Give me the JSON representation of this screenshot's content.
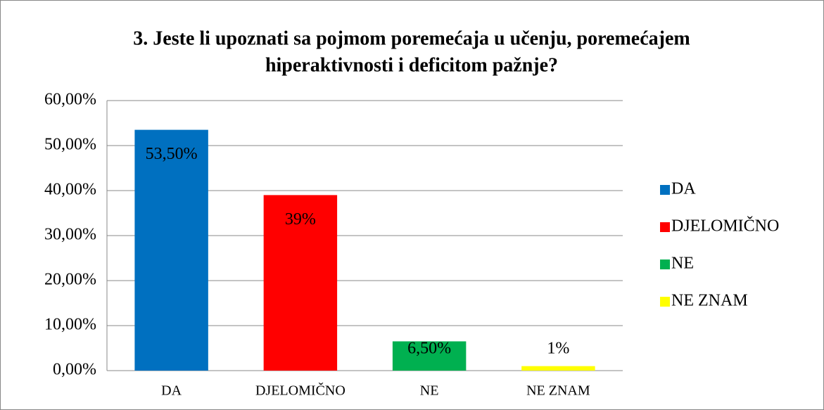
{
  "chart_data": {
    "type": "bar",
    "title": [
      "3. Jeste li upoznati sa pojmom poremećaja u učenju,  poremećajem",
      "hiperaktivnosti i deficitom pažnje?"
    ],
    "categories": [
      "DA",
      "DJELOMIČNO",
      "NE",
      "NE ZNAM"
    ],
    "values": [
      53.5,
      39,
      6.5,
      1
    ],
    "value_labels": [
      "53,50%",
      "39%",
      "6,50%",
      "1%"
    ],
    "colors": [
      "#0070c0",
      "#ff0000",
      "#00b050",
      "#ffff00"
    ],
    "ylim": [
      0,
      60
    ],
    "yticks": [
      {
        "value": 0,
        "label": "0,00%"
      },
      {
        "value": 10,
        "label": "10,00%"
      },
      {
        "value": 20,
        "label": "20,00%"
      },
      {
        "value": 30,
        "label": "30,00%"
      },
      {
        "value": 40,
        "label": "40,00%"
      },
      {
        "value": 50,
        "label": "50,00%"
      },
      {
        "value": 60,
        "label": "60,00%"
      }
    ],
    "grid": true,
    "legend": "right"
  }
}
